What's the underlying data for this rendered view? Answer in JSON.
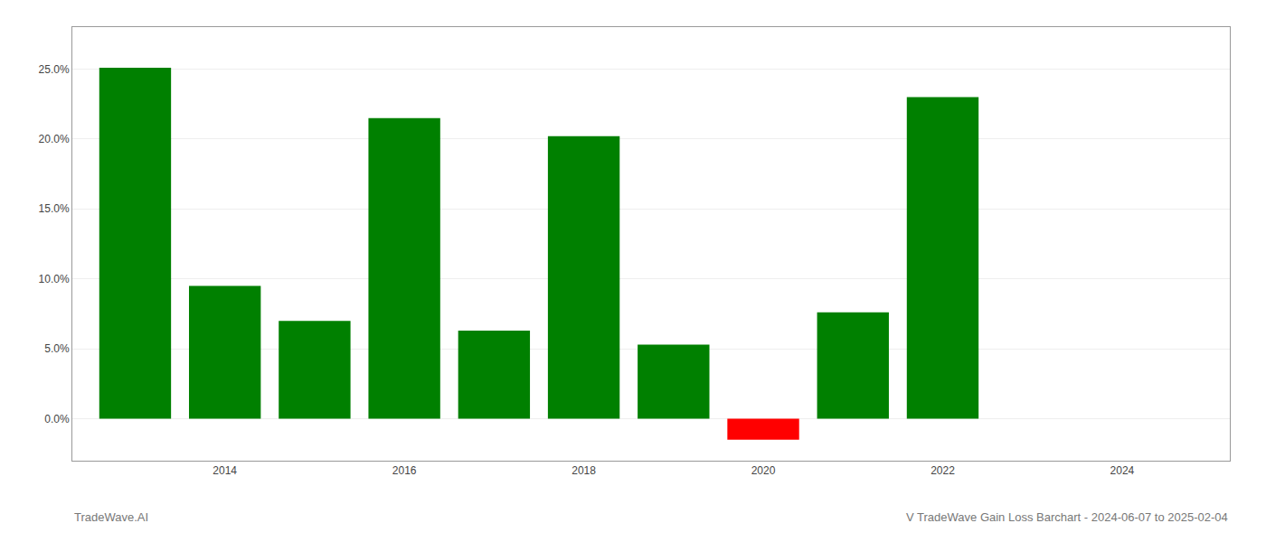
{
  "chart_data": {
    "type": "bar",
    "x": [
      2013,
      2014,
      2015,
      2016,
      2017,
      2018,
      2019,
      2020,
      2021,
      2022,
      2023
    ],
    "values": [
      0.251,
      0.095,
      0.07,
      0.215,
      0.063,
      0.202,
      0.053,
      -0.015,
      0.076,
      0.23,
      null
    ],
    "colors": [
      "#008000",
      "#008000",
      "#008000",
      "#008000",
      "#008000",
      "#008000",
      "#008000",
      "#ff0000",
      "#008000",
      "#008000",
      "#008000"
    ],
    "annotations": [
      "TradeWave.AI",
      "V TradeWave Gain Loss Barchart - 2024-06-07 to 2025-02-04"
    ],
    "xlim": [
      2012.3,
      2025.2
    ],
    "xticks": [
      2014,
      2016,
      2018,
      2020,
      2022,
      2024
    ],
    "ylim": [
      -0.03,
      0.28
    ],
    "yticks": [
      {
        "value": 0.0,
        "label": "0.0%"
      },
      {
        "value": 0.05,
        "label": "5.0%"
      },
      {
        "value": 0.1,
        "label": "10.0%"
      },
      {
        "value": 0.15,
        "label": "15.0%"
      },
      {
        "value": 0.2,
        "label": "20.0%"
      },
      {
        "value": 0.25,
        "label": "25.0%"
      }
    ],
    "grid": true
  }
}
